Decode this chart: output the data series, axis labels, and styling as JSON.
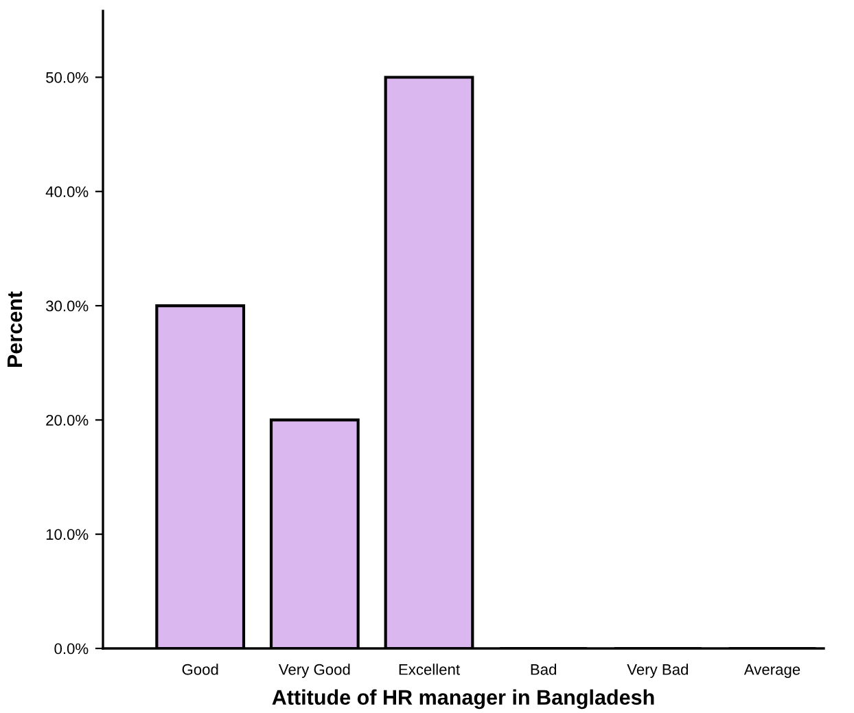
{
  "chart_data": {
    "type": "bar",
    "xlabel": "Attitude of HR manager in Bangladesh",
    "ylabel": "Percent",
    "categories": [
      "Good",
      "Very Good",
      "Excellent",
      "Bad",
      "Very Bad",
      "Average"
    ],
    "values": [
      30,
      20,
      50,
      0,
      0,
      0
    ],
    "color": "#dbb7f0",
    "ylim": [
      0,
      55.8
    ],
    "yticks": [
      {
        "value": 0,
        "label": "0.0%"
      },
      {
        "value": 10,
        "label": "10.0%"
      },
      {
        "value": 20,
        "label": "20.0%"
      },
      {
        "value": 30,
        "label": "30.0%"
      },
      {
        "value": 40,
        "label": "40.0%"
      },
      {
        "value": 50,
        "label": "50.0%"
      }
    ],
    "grid": false,
    "legend": false
  }
}
